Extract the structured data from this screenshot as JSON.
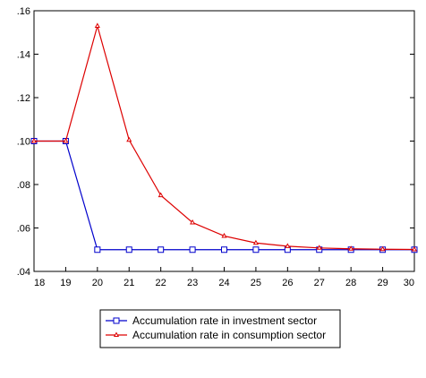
{
  "chart_data": {
    "type": "line",
    "title": "",
    "xlabel": "",
    "ylabel": "",
    "x": [
      18,
      19,
      20,
      21,
      22,
      23,
      24,
      25,
      26,
      27,
      28,
      29,
      30
    ],
    "xlim": [
      18,
      30
    ],
    "ylim": [
      0.04,
      0.16
    ],
    "y_ticks": [
      ".04",
      ".06",
      ".08",
      ".10",
      ".12",
      ".14",
      ".16"
    ],
    "x_ticks": [
      "18",
      "19",
      "20",
      "21",
      "22",
      "23",
      "24",
      "25",
      "26",
      "27",
      "28",
      "29",
      "30"
    ],
    "grid": false,
    "legend_position": "bottom",
    "series": [
      {
        "name": "Accumulation rate in investment sector",
        "color": "#0000cc",
        "marker": "square",
        "values": [
          0.1,
          0.1,
          0.05,
          0.05,
          0.05,
          0.05,
          0.05,
          0.05,
          0.05,
          0.05,
          0.05,
          0.05,
          0.05
        ]
      },
      {
        "name": "Accumulation rate in consumption sector",
        "color": "#dd0000",
        "marker": "triangle",
        "values": [
          0.1,
          0.1,
          0.153,
          0.1005,
          0.075,
          0.0625,
          0.0563,
          0.0531,
          0.0516,
          0.0508,
          0.0504,
          0.0502,
          0.0501
        ]
      }
    ]
  }
}
